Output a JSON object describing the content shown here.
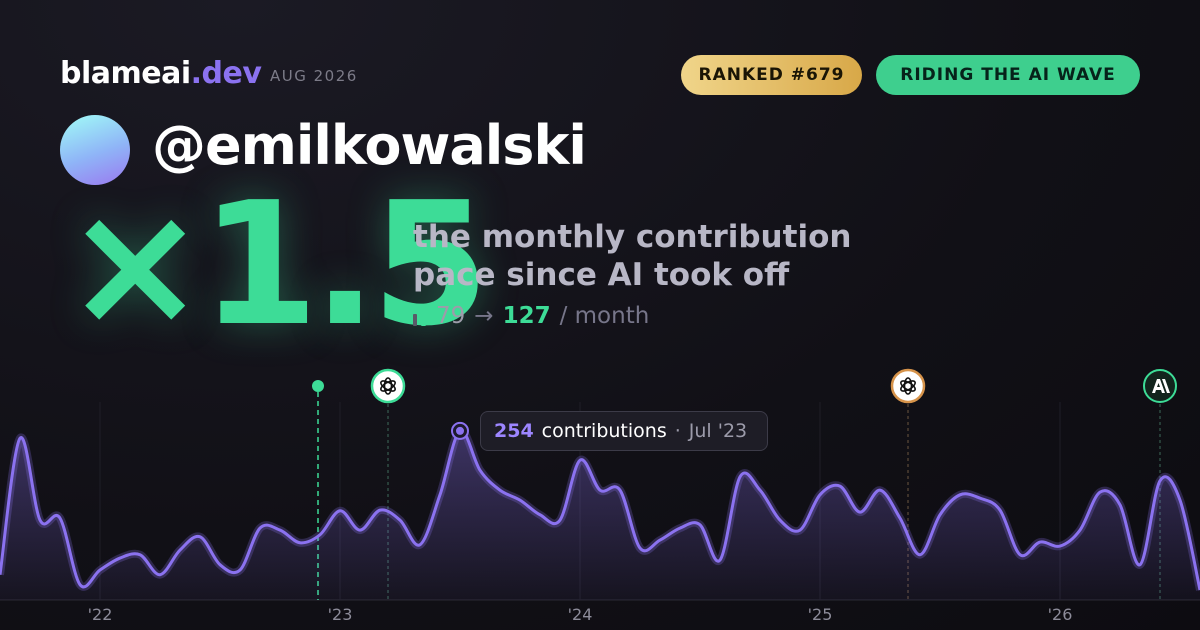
{
  "header": {
    "brand": "blameai",
    "brand_tld": ".dev",
    "date": "AUG 2026",
    "badges": [
      "RANKED #679",
      "RIDING THE AI WAVE"
    ]
  },
  "profile": {
    "handle": "@emilkowalski"
  },
  "headline": {
    "multiplier": "×1.5",
    "caption_lines": [
      "the monthly contribution",
      "pace since AI took off"
    ],
    "before": 79,
    "arrow": "→",
    "after": 127,
    "unit": "/ month"
  },
  "chart_data": {
    "type": "line",
    "categories": [
      null,
      null,
      null,
      null,
      null,
      "'22",
      null,
      null,
      null,
      null,
      null,
      null,
      null,
      null,
      null,
      null,
      null,
      "'23",
      null,
      null,
      null,
      null,
      null,
      null,
      null,
      null,
      null,
      null,
      null,
      "'24",
      null,
      null,
      null,
      null,
      null,
      null,
      null,
      null,
      null,
      null,
      null,
      "'25",
      null,
      null,
      null,
      null,
      null,
      null,
      null,
      null,
      null,
      null,
      null,
      "'26",
      null,
      null,
      null,
      null,
      null,
      null,
      null
    ],
    "series": [
      {
        "color": "#8b72f0",
        "values": [
          38,
          243,
          120,
          123,
          23,
          45,
          63,
          68,
          38,
          75,
          95,
          53,
          45,
          108,
          105,
          86,
          98,
          134,
          105,
          135,
          120,
          83,
          158,
          254,
          195,
          165,
          150,
          128,
          120,
          210,
          165,
          165,
          78,
          90,
          108,
          113,
          60,
          185,
          165,
          120,
          105,
          158,
          171,
          132,
          165,
          123,
          68,
          128,
          158,
          153,
          135,
          68,
          87,
          81,
          105,
          162,
          143,
          53,
          179,
          150,
          15
        ]
      }
    ],
    "ylim": [
      0,
      380
    ],
    "tooltip": {
      "unit": "contributions",
      "separator": "·",
      "date": "Jul '23"
    }
  }
}
